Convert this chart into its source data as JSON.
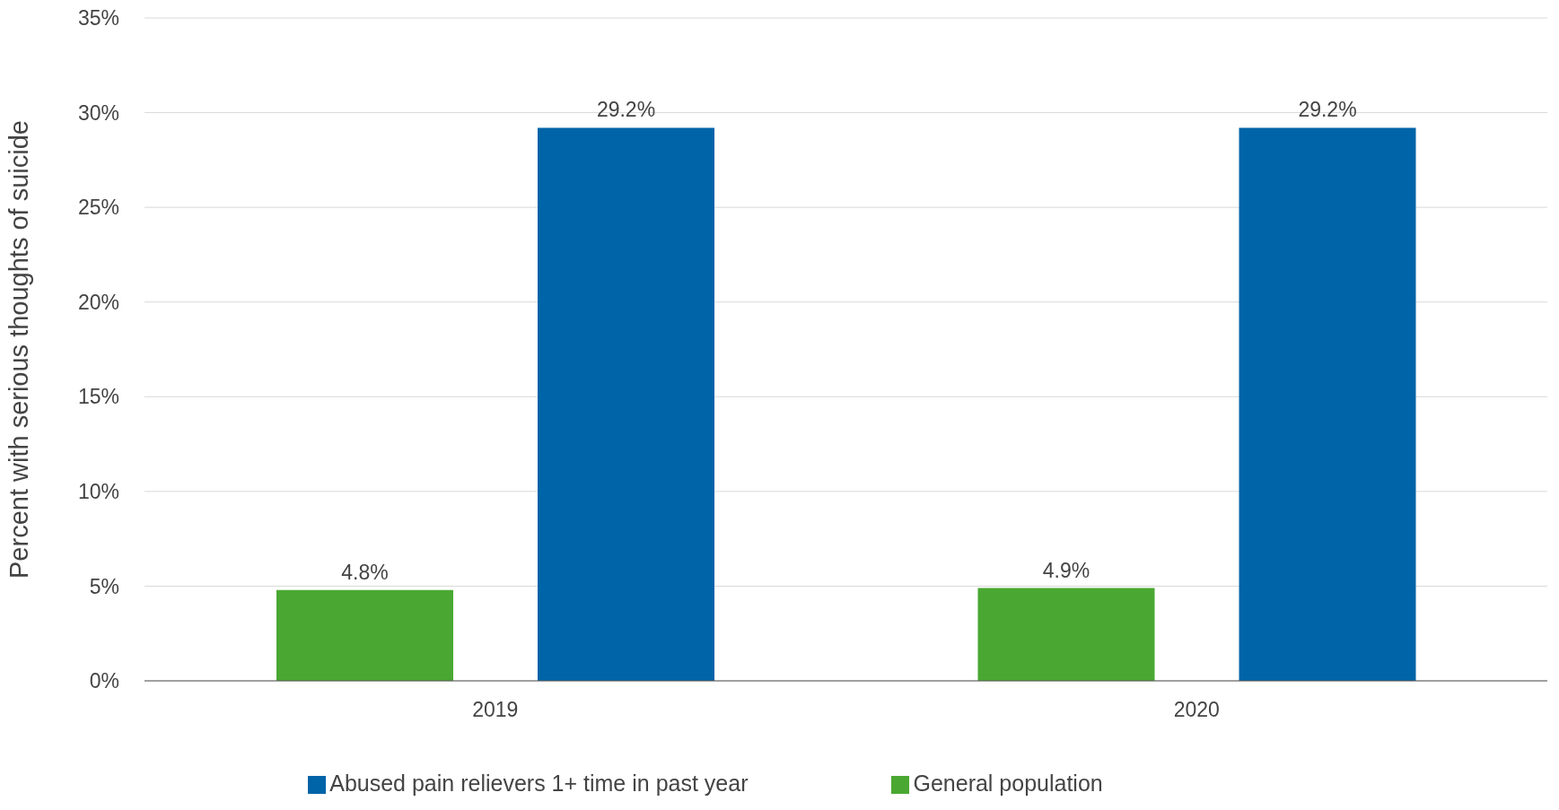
{
  "chart_data": {
    "type": "bar",
    "ylabel": "Percent with serious thoughts of suicide",
    "categories": [
      "2019",
      "2020"
    ],
    "series": [
      {
        "name": "General population",
        "color": "#4aa832",
        "values": [
          4.8,
          4.9
        ],
        "value_labels": [
          "4.8%",
          "4.9%"
        ]
      },
      {
        "name": "Abused pain relievers 1+ time in past year",
        "color": "#0064a8",
        "values": [
          29.2,
          29.2
        ],
        "value_labels": [
          "29.2%",
          "29.2%"
        ]
      }
    ],
    "ylim": [
      0,
      35
    ],
    "yticks": [
      {
        "value": 0,
        "label": "0%"
      },
      {
        "value": 5,
        "label": "5%"
      },
      {
        "value": 10,
        "label": "10%"
      },
      {
        "value": 15,
        "label": "15%"
      },
      {
        "value": 20,
        "label": "20%"
      },
      {
        "value": 25,
        "label": "25%"
      },
      {
        "value": 30,
        "label": "30%"
      },
      {
        "value": 35,
        "label": "35%"
      }
    ],
    "grid": "y",
    "legend": "bottom"
  }
}
